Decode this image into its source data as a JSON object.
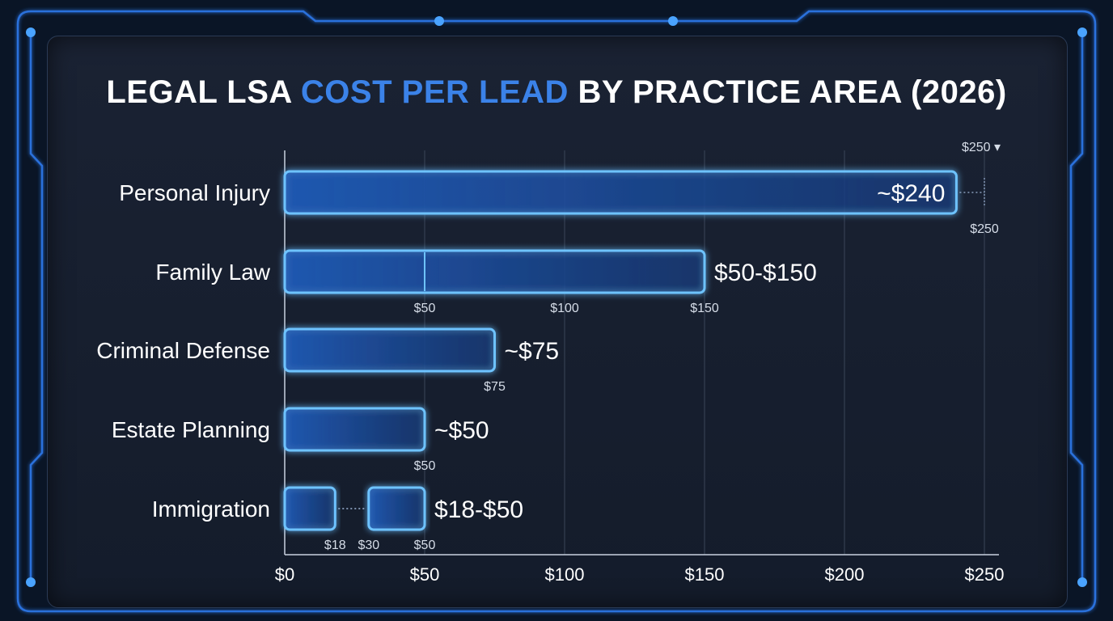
{
  "title_parts": {
    "pre": "LEGAL LSA ",
    "accent": "COST PER LEAD",
    "post": " BY PRACTICE AREA (2026)"
  },
  "colors": {
    "accent": "#3b82e8",
    "bar_stroke": "#6ec3ff",
    "background": "#141c2b"
  },
  "chart_data": {
    "type": "bar",
    "orientation": "horizontal",
    "xlim": [
      0,
      250
    ],
    "grid": true,
    "x_ticks": [
      {
        "value": 0,
        "label": "$0"
      },
      {
        "value": 50,
        "label": "$50"
      },
      {
        "value": 100,
        "label": "$100"
      },
      {
        "value": 150,
        "label": "$150"
      },
      {
        "value": 200,
        "label": "$200"
      },
      {
        "value": 250,
        "label": "$250"
      }
    ],
    "top_marker": {
      "value": 250,
      "label": "$250 ▾"
    },
    "categories": [
      {
        "name": "Personal Injury",
        "value_label": "~$240",
        "value_inside": true,
        "segments": [
          [
            0,
            240
          ]
        ],
        "dividers": [],
        "markers": [
          {
            "value": 250,
            "label": "$250"
          }
        ]
      },
      {
        "name": "Family Law",
        "value_label": "$50-$150",
        "value_inside": false,
        "segments": [
          [
            0,
            150
          ]
        ],
        "dividers": [
          50
        ],
        "markers": [
          {
            "value": 50,
            "label": "$50"
          },
          {
            "value": 100,
            "label": "$100"
          },
          {
            "value": 150,
            "label": "$150"
          }
        ]
      },
      {
        "name": "Criminal Defense",
        "value_label": "~$75",
        "value_inside": false,
        "segments": [
          [
            0,
            75
          ]
        ],
        "dividers": [],
        "markers": [
          {
            "value": 75,
            "label": "$75"
          }
        ]
      },
      {
        "name": "Estate Planning",
        "value_label": "~$50",
        "value_inside": false,
        "segments": [
          [
            0,
            50
          ]
        ],
        "dividers": [],
        "markers": [
          {
            "value": 50,
            "label": "$50"
          }
        ]
      },
      {
        "name": "Immigration",
        "value_label": "$18-$50",
        "value_inside": false,
        "segments": [
          [
            0,
            18
          ],
          [
            30,
            50
          ]
        ],
        "dividers": [],
        "markers": [
          {
            "value": 18,
            "label": "$18"
          },
          {
            "value": 30,
            "label": "$30"
          },
          {
            "value": 50,
            "label": "$50"
          }
        ]
      }
    ]
  }
}
